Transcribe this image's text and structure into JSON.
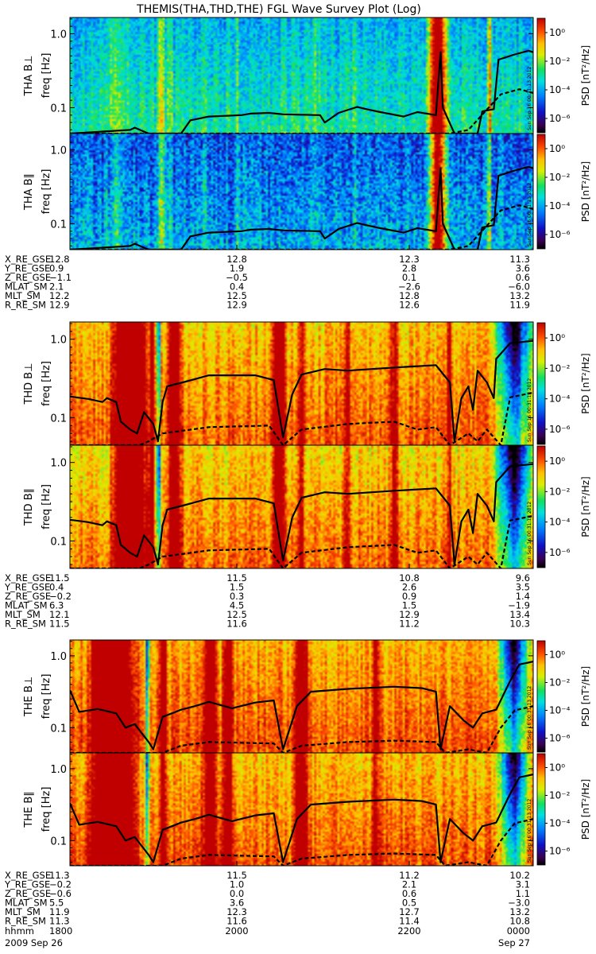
{
  "chart_data": {
    "type": "heatmap",
    "title": "THEMIS(THA,THD,THE) FGL Wave Survey Plot (Log)",
    "stamp": "Sun Sep 16 00:31:13 2012",
    "colorbar": {
      "label": "PSD [nT²/Hz]",
      "ticks": [
        "10⁰",
        "10⁻²",
        "10⁻⁴",
        "10⁻⁶"
      ],
      "log_range": [
        -7,
        1
      ]
    },
    "yaxis": {
      "label": "freq [Hz]",
      "ticks": [
        "1.0",
        "0.1"
      ],
      "log_range": [
        -1.35,
        0.22
      ]
    },
    "time_axis": {
      "row_label": "hhmm",
      "ticks": [
        "1800",
        "2000",
        "2200",
        "0000"
      ],
      "date_start": "2009    Sep 26",
      "date_end": "Sep 27"
    },
    "groups": [
      {
        "probe": "THA",
        "panels": [
          {
            "name": "THA B⊥",
            "base": 0.45,
            "gradient": 0.12,
            "noise": 0.2,
            "seed": 11
          },
          {
            "name": "THA B∥",
            "base": 0.32,
            "gradient": 0.12,
            "noise": 0.28,
            "seed": 23
          }
        ],
        "solid_line": [
          [
            0,
            -1.35
          ],
          [
            0.13,
            -1.3
          ],
          [
            0.14,
            -1.27
          ],
          [
            0.17,
            -1.35
          ],
          [
            0.24,
            -1.35
          ],
          [
            0.26,
            -1.17
          ],
          [
            0.3,
            -1.12
          ],
          [
            0.37,
            -1.1
          ],
          [
            0.39,
            -1.08
          ],
          [
            0.43,
            -1.07
          ],
          [
            0.46,
            -1.09
          ],
          [
            0.54,
            -1.1
          ],
          [
            0.55,
            -1.2
          ],
          [
            0.58,
            -1.07
          ],
          [
            0.62,
            -0.99
          ],
          [
            0.64,
            -1.02
          ],
          [
            0.67,
            -1.06
          ],
          [
            0.72,
            -1.12
          ],
          [
            0.75,
            -1.06
          ],
          [
            0.79,
            -1.1
          ],
          [
            0.8,
            -0.25
          ],
          [
            0.805,
            -1.0
          ],
          [
            0.83,
            -1.35
          ],
          [
            0.88,
            -1.35
          ],
          [
            0.89,
            -1.05
          ],
          [
            0.915,
            -1.02
          ],
          [
            0.925,
            -0.35
          ],
          [
            0.96,
            -0.28
          ],
          [
            0.99,
            -0.23
          ],
          [
            1.0,
            -0.25
          ]
        ],
        "dashed_line": [
          [
            0,
            -1.35
          ],
          [
            0.82,
            -1.35
          ],
          [
            0.86,
            -1.3
          ],
          [
            0.93,
            -0.82
          ],
          [
            0.97,
            -0.75
          ],
          [
            1.0,
            -0.8
          ]
        ],
        "bright": [
          [
            0.1,
            0.03,
            0.12
          ],
          [
            0.195,
            0.012,
            0.33
          ],
          [
            0.215,
            0.008,
            0.18
          ],
          [
            0.29,
            0.01,
            0.1
          ],
          [
            0.36,
            0.006,
            0.12
          ],
          [
            0.53,
            0.01,
            0.12
          ],
          [
            0.615,
            0.006,
            0.16
          ],
          [
            0.795,
            0.028,
            0.9
          ],
          [
            0.907,
            0.005,
            0.5
          ]
        ],
        "ephem": [
          {
            "label": "X_RE_GSE",
            "values": [
              "12.8",
              "12.8",
              "12.3",
              "11.3"
            ]
          },
          {
            "label": "Y_RE_GSE",
            "values": [
              "0.9",
              "1.9",
              "2.8",
              "3.6"
            ]
          },
          {
            "label": "Z_RE_GSE",
            "values": [
              "−1.1",
              "−0.5",
              "0.1",
              "0.6"
            ]
          },
          {
            "label": "MLAT_SM",
            "values": [
              "2.1",
              "0.4",
              "−2.6",
              "−6.0"
            ]
          },
          {
            "label": "MLT_SM",
            "values": [
              "12.2",
              "12.5",
              "12.8",
              "13.2"
            ]
          },
          {
            "label": "R_RE_SM",
            "values": [
              "12.9",
              "12.9",
              "12.6",
              "11.9"
            ]
          }
        ]
      },
      {
        "probe": "THD",
        "panels": [
          {
            "name": "THD B⊥",
            "base": 0.82,
            "gradient": 0.12,
            "noise": 0.16,
            "seed": 37
          },
          {
            "name": "THD B∥",
            "base": 0.8,
            "gradient": 0.13,
            "noise": 0.17,
            "seed": 53
          }
        ],
        "solid_line": [
          [
            0,
            -0.73
          ],
          [
            0.04,
            -0.76
          ],
          [
            0.07,
            -0.8
          ],
          [
            0.08,
            -0.75
          ],
          [
            0.1,
            -0.8
          ],
          [
            0.11,
            -1.05
          ],
          [
            0.13,
            -1.15
          ],
          [
            0.145,
            -1.2
          ],
          [
            0.16,
            -0.93
          ],
          [
            0.18,
            -1.08
          ],
          [
            0.19,
            -1.3
          ],
          [
            0.2,
            -0.8
          ],
          [
            0.21,
            -0.6
          ],
          [
            0.25,
            -0.54
          ],
          [
            0.3,
            -0.46
          ],
          [
            0.4,
            -0.46
          ],
          [
            0.44,
            -0.52
          ],
          [
            0.46,
            -1.25
          ],
          [
            0.48,
            -0.7
          ],
          [
            0.5,
            -0.45
          ],
          [
            0.55,
            -0.38
          ],
          [
            0.6,
            -0.4
          ],
          [
            0.7,
            -0.36
          ],
          [
            0.79,
            -0.33
          ],
          [
            0.82,
            -0.55
          ],
          [
            0.83,
            -1.3
          ],
          [
            0.845,
            -0.75
          ],
          [
            0.86,
            -0.6
          ],
          [
            0.87,
            -0.9
          ],
          [
            0.88,
            -0.4
          ],
          [
            0.9,
            -0.55
          ],
          [
            0.915,
            -0.75
          ],
          [
            0.92,
            -0.25
          ],
          [
            0.95,
            -0.05
          ],
          [
            1.0,
            -0.02
          ]
        ],
        "dashed_line": [
          [
            0,
            -1.35
          ],
          [
            0.15,
            -1.35
          ],
          [
            0.17,
            -1.3
          ],
          [
            0.2,
            -1.2
          ],
          [
            0.3,
            -1.12
          ],
          [
            0.43,
            -1.1
          ],
          [
            0.46,
            -1.35
          ],
          [
            0.5,
            -1.15
          ],
          [
            0.6,
            -1.08
          ],
          [
            0.7,
            -1.05
          ],
          [
            0.75,
            -1.15
          ],
          [
            0.79,
            -1.12
          ],
          [
            0.82,
            -1.35
          ],
          [
            0.86,
            -1.2
          ],
          [
            0.88,
            -1.3
          ],
          [
            0.9,
            -1.15
          ],
          [
            0.93,
            -1.35
          ],
          [
            0.95,
            -0.74
          ],
          [
            1.0,
            -0.68
          ]
        ],
        "bright": [
          [
            0.13,
            0.05,
            0.6
          ],
          [
            0.175,
            0.006,
            0.5
          ],
          [
            0.225,
            0.02,
            0.45
          ],
          [
            0.45,
            0.02,
            0.5
          ],
          [
            0.5,
            0.01,
            0.3
          ],
          [
            0.6,
            0.01,
            0.3
          ],
          [
            0.7,
            0.015,
            0.25
          ],
          [
            0.82,
            0.006,
            0.35
          ]
        ],
        "dark": [
          [
            0.96,
            0.05,
            0.75
          ],
          [
            0.19,
            0.005,
            0.6
          ]
        ],
        "ephem": [
          {
            "label": "X_RE_GSE",
            "values": [
              "11.5",
              "11.5",
              "10.8",
              "9.6"
            ]
          },
          {
            "label": "Y_RE_GSE",
            "values": [
              "0.4",
              "1.5",
              "2.6",
              "3.5"
            ]
          },
          {
            "label": "Z_RE_GSE",
            "values": [
              "−0.2",
              "0.3",
              "0.9",
              "1.4"
            ]
          },
          {
            "label": "MLAT_SM",
            "values": [
              "6.3",
              "4.5",
              "1.5",
              "−1.9"
            ]
          },
          {
            "label": "MLT_SM",
            "values": [
              "12.1",
              "12.5",
              "12.9",
              "13.4"
            ]
          },
          {
            "label": "R_RE_SM",
            "values": [
              "11.5",
              "11.6",
              "11.2",
              "10.3"
            ]
          }
        ]
      },
      {
        "probe": "THE",
        "panels": [
          {
            "name": "THE B⊥",
            "base": 0.84,
            "gradient": 0.12,
            "noise": 0.15,
            "seed": 71
          },
          {
            "name": "THE B∥",
            "base": 0.83,
            "gradient": 0.13,
            "noise": 0.16,
            "seed": 89
          }
        ],
        "solid_line": [
          [
            0,
            -0.48
          ],
          [
            0.02,
            -0.78
          ],
          [
            0.06,
            -0.74
          ],
          [
            0.1,
            -0.8
          ],
          [
            0.12,
            -1.0
          ],
          [
            0.14,
            -0.95
          ],
          [
            0.17,
            -1.2
          ],
          [
            0.18,
            -1.3
          ],
          [
            0.2,
            -0.85
          ],
          [
            0.22,
            -0.8
          ],
          [
            0.24,
            -0.75
          ],
          [
            0.27,
            -0.7
          ],
          [
            0.3,
            -0.64
          ],
          [
            0.35,
            -0.73
          ],
          [
            0.4,
            -0.65
          ],
          [
            0.44,
            -0.62
          ],
          [
            0.46,
            -1.3
          ],
          [
            0.49,
            -0.7
          ],
          [
            0.52,
            -0.5
          ],
          [
            0.6,
            -0.46
          ],
          [
            0.7,
            -0.43
          ],
          [
            0.76,
            -0.45
          ],
          [
            0.79,
            -0.5
          ],
          [
            0.8,
            -1.3
          ],
          [
            0.82,
            -0.7
          ],
          [
            0.85,
            -0.9
          ],
          [
            0.87,
            -1.0
          ],
          [
            0.89,
            -0.8
          ],
          [
            0.92,
            -0.75
          ],
          [
            0.95,
            -0.35
          ],
          [
            0.97,
            -0.12
          ],
          [
            1.0,
            -0.08
          ]
        ],
        "dashed_line": [
          [
            0,
            -1.35
          ],
          [
            0.2,
            -1.35
          ],
          [
            0.24,
            -1.25
          ],
          [
            0.3,
            -1.2
          ],
          [
            0.44,
            -1.22
          ],
          [
            0.46,
            -1.35
          ],
          [
            0.5,
            -1.25
          ],
          [
            0.6,
            -1.2
          ],
          [
            0.7,
            -1.18
          ],
          [
            0.79,
            -1.2
          ],
          [
            0.81,
            -1.35
          ],
          [
            0.86,
            -1.3
          ],
          [
            0.9,
            -1.35
          ],
          [
            0.93,
            -1.0
          ],
          [
            0.96,
            -0.76
          ],
          [
            1.0,
            -0.7
          ]
        ],
        "bright": [
          [
            0.09,
            0.06,
            0.7
          ],
          [
            0.2,
            0.01,
            0.45
          ],
          [
            0.3,
            0.02,
            0.4
          ],
          [
            0.34,
            0.015,
            0.45
          ],
          [
            0.5,
            0.02,
            0.45
          ],
          [
            0.66,
            0.012,
            0.3
          ]
        ],
        "dark": [
          [
            0.96,
            0.04,
            0.7
          ],
          [
            0.165,
            0.006,
            0.55
          ]
        ],
        "ephem": [
          {
            "label": "X_RE_GSE",
            "values": [
              "11.3",
              "11.5",
              "11.2",
              "10.2"
            ]
          },
          {
            "label": "Y_RE_GSE",
            "values": [
              "−0.2",
              "1.0",
              "2.1",
              "3.1"
            ]
          },
          {
            "label": "Z_RE_GSE",
            "values": [
              "−0.6",
              "0.0",
              "0.6",
              "1.1"
            ]
          },
          {
            "label": "MLAT_SM",
            "values": [
              "5.5",
              "3.6",
              "0.5",
              "−3.0"
            ]
          },
          {
            "label": "MLT_SM",
            "values": [
              "11.9",
              "12.3",
              "12.7",
              "13.2"
            ]
          },
          {
            "label": "R_RE_SM",
            "values": [
              "11.3",
              "11.6",
              "11.4",
              "10.8"
            ]
          }
        ]
      }
    ]
  }
}
